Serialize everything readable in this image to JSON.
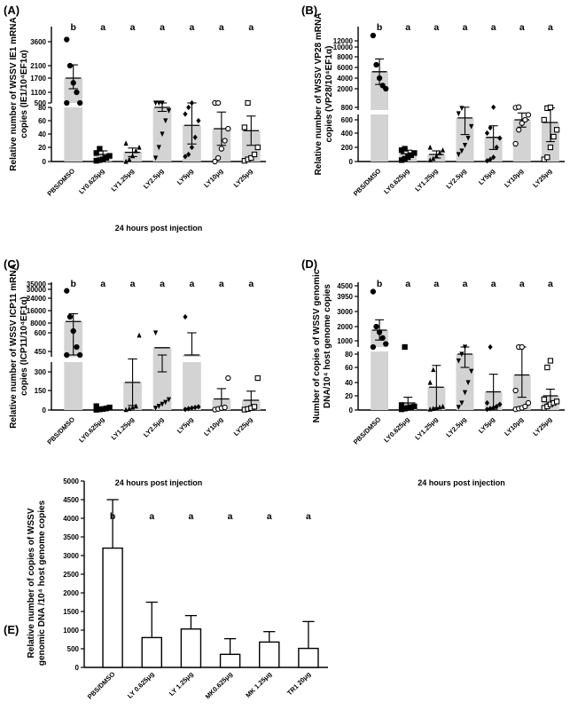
{
  "chart_data": [
    {
      "type": "bar",
      "panel": "(A)",
      "ylabel_lines": [
        "Relative number of WSSV IE1 mRNA",
        "copies (IE1/10⁴EF1α)"
      ],
      "xlabel": "24 hours post injection",
      "categories": [
        "PBS/DMSO",
        "LY0.625μg",
        "LY1.25μg",
        "LY2.5μg",
        "LY5μg",
        "LY10μg",
        "LY25μg"
      ],
      "values": [
        1700,
        10,
        13,
        80,
        53,
        48,
        45
      ],
      "errors": [
        450,
        5,
        6,
        6,
        28,
        25,
        22
      ],
      "letters": [
        "b",
        "a",
        "a",
        "a",
        "a",
        "a",
        "a"
      ],
      "upper_ticks": [
        "3600",
        "2100",
        "1700",
        "1100",
        "500"
      ],
      "lower_ticks": [
        "0",
        "20",
        "40",
        "60",
        "80"
      ],
      "markers": [
        "circle",
        "square",
        "triangle",
        "triangle-down",
        "diamond",
        "circle-open",
        "square-open"
      ],
      "points": [
        [
          3800,
          2100,
          1500,
          1100,
          700,
          450
        ],
        [
          1,
          2,
          3,
          5,
          8,
          12,
          18
        ],
        [
          0,
          3,
          8,
          15,
          20,
          26
        ],
        [
          5,
          20,
          40,
          60,
          75,
          82,
          85,
          87
        ],
        [
          7,
          10,
          20,
          35,
          60,
          70,
          80,
          87
        ],
        [
          0,
          5,
          18,
          30,
          48,
          85,
          88
        ],
        [
          1,
          3,
          5,
          10,
          20,
          50,
          85
        ]
      ]
    },
    {
      "type": "bar",
      "panel": "(B)",
      "ylabel_lines": [
        "Relative number of WSSV VP28 mRNA",
        "copies (VP28/10⁴EF1α)"
      ],
      "xlabel": "",
      "categories": [
        "PBS/DMSO",
        "LY0.625μg",
        "LY1.25μg",
        "LY2.5μg",
        "LY5μg",
        "LY10μg",
        "LY25μg"
      ],
      "values": [
        5200,
        110,
        100,
        630,
        340,
        600,
        560
      ],
      "errors": [
        2400,
        50,
        50,
        250,
        170,
        110,
        280
      ],
      "letters": [
        "b",
        "a",
        "a",
        "a",
        "a",
        "a",
        "a"
      ],
      "upper_ticks": [
        "12000",
        "10000",
        "8000",
        "6000",
        "4000",
        "2000"
      ],
      "lower_ticks": [
        "0",
        "200",
        "400",
        "600",
        "800"
      ],
      "markers": [
        "circle",
        "square",
        "triangle",
        "triangle-down",
        "diamond",
        "circle-open",
        "square-open"
      ],
      "points": [
        [
          13500,
          6500,
          4000,
          2600,
          2000
        ],
        [
          20,
          40,
          60,
          90,
          120,
          160,
          180
        ],
        [
          20,
          40,
          80,
          120,
          160,
          200
        ],
        [
          100,
          150,
          230,
          330,
          500,
          700,
          820
        ],
        [
          10,
          30,
          60,
          200,
          330,
          400,
          480,
          880
        ],
        [
          250,
          450,
          550,
          600,
          680,
          850,
          890
        ],
        [
          30,
          60,
          200,
          350,
          450,
          600,
          820,
          870
        ]
      ]
    },
    {
      "type": "bar",
      "panel": "(C)",
      "ylabel_lines": [
        "Relative number of WSSV ICP11 mRNA",
        "copies (ICP11/10⁴EF1α)"
      ],
      "xlabel": "24 hours post injection",
      "categories": [
        "PBS/DMSO",
        "LY0.625μg",
        "LY1.25μg",
        "LY2.5μg",
        "LY5μg",
        "LY10μg",
        "LY25μg"
      ],
      "values": [
        9000,
        10,
        215,
        480,
        620,
        85,
        75
      ],
      "errors": [
        5000,
        10,
        180,
        180,
        20,
        80,
        70
      ],
      "letters": [
        "b",
        "a",
        "a",
        "a",
        "a",
        "a",
        "a"
      ],
      "upper_ticks": [
        "35000",
        "30000",
        "24000",
        "16000",
        "8000"
      ],
      "lower_ticks": [
        "0",
        "150",
        "300",
        "450",
        "600"
      ],
      "markers": [
        "circle",
        "square",
        "triangle",
        "triangle-down",
        "diamond",
        "circle-open",
        "square-open"
      ],
      "points": [
        [
          29000,
          12000,
          7000,
          5000,
          4000,
          3000
        ],
        [
          2,
          5,
          8,
          12,
          20,
          30
        ],
        [
          2,
          10,
          20,
          30,
          580
        ],
        [
          15,
          30,
          45,
          60,
          80,
          600
        ],
        [
          5,
          10,
          15,
          20,
          25,
          12000
        ],
        [
          3,
          8,
          15,
          20,
          250
        ],
        [
          3,
          8,
          15,
          25,
          250
        ]
      ]
    },
    {
      "type": "bar",
      "panel": "(D)",
      "ylabel_lines": [
        "Number of copies of WSSV genomic",
        "DNA/10⁴ host genome copies"
      ],
      "xlabel": "24 hours post injection",
      "categories": [
        "PBS/DMSO",
        "LY0.625μg",
        "LY1.25μg",
        "LY2.5μg",
        "LY5μg",
        "LY10μg",
        "LY25μg"
      ],
      "values": [
        1750,
        10,
        33,
        80,
        26,
        50,
        20
      ],
      "errors": [
        700,
        8,
        30,
        20,
        25,
        32,
        10
      ],
      "letters": [
        "b",
        "a",
        "a",
        "a",
        "a",
        "a",
        "a"
      ],
      "upper_ticks": [
        "4500",
        "3950",
        "3000",
        "2000",
        "1000"
      ],
      "lower_ticks": [
        "0",
        "20",
        "40",
        "60",
        "80"
      ],
      "markers": [
        "circle",
        "square",
        "triangle",
        "triangle-down",
        "diamond",
        "circle-open",
        "square-open"
      ],
      "points": [
        [
          4200,
          2000,
          1600,
          1200,
          900,
          800
        ],
        [
          1,
          2,
          3,
          4,
          5,
          7,
          82
        ],
        [
          1,
          2,
          3,
          4,
          5,
          40,
          57
        ],
        [
          4,
          10,
          25,
          40,
          55,
          70,
          80,
          85
        ],
        [
          1,
          2,
          3,
          5,
          8,
          10,
          85
        ],
        [
          1,
          2,
          3,
          5,
          10,
          28,
          85,
          88
        ],
        [
          3,
          5,
          8,
          10,
          12,
          15,
          60,
          70
        ]
      ]
    },
    {
      "type": "bar",
      "panel": "(E)",
      "ylabel_lines": [
        "Relative number of copies of WSSV",
        "genomic DNA /10⁴ host genome copies"
      ],
      "xlabel": "",
      "categories": [
        "PBS/DMSO",
        "LY 0.625μg",
        "LY 1.25μg",
        "MK0.625μg",
        "MK 1.25μg",
        "TR1 20μg"
      ],
      "values": [
        3200,
        800,
        1030,
        350,
        680,
        510
      ],
      "errors": [
        1300,
        950,
        360,
        420,
        280,
        720
      ],
      "letters": [
        "b",
        "a",
        "a",
        "a",
        "a",
        "a"
      ],
      "ylim": [
        0,
        5000
      ],
      "yticks": [
        "0",
        "500",
        "1000",
        "1500",
        "2000",
        "2500",
        "3000",
        "3500",
        "4000",
        "4500",
        "5000"
      ]
    }
  ]
}
